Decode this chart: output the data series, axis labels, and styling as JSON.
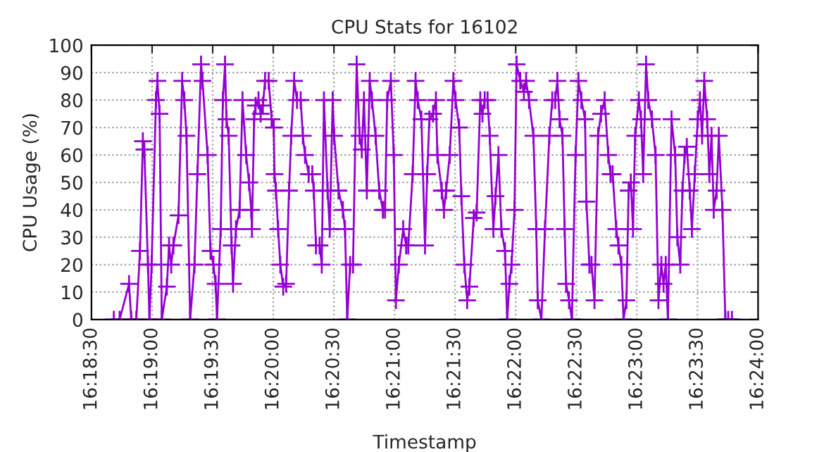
{
  "chart_data": {
    "type": "line",
    "title": "CPU Stats for 16102",
    "xlabel": "Timestamp",
    "ylabel": "CPU Usage (%)",
    "xlim": [
      16.30833,
      16.4
    ],
    "xticks": [
      {
        "value": 16.30833,
        "label": "16:18:30"
      },
      {
        "value": 16.31667,
        "label": "16:19:00"
      },
      {
        "value": 16.325,
        "label": "16:19:30"
      },
      {
        "value": 16.33333,
        "label": "16:20:00"
      },
      {
        "value": 16.34167,
        "label": "16:20:30"
      },
      {
        "value": 16.35,
        "label": "16:21:00"
      },
      {
        "value": 16.35833,
        "label": "16:21:30"
      },
      {
        "value": 16.36667,
        "label": "16:22:00"
      },
      {
        "value": 16.375,
        "label": "16:22:30"
      },
      {
        "value": 16.38333,
        "label": "16:23:00"
      },
      {
        "value": 16.39167,
        "label": "16:23:30"
      },
      {
        "value": 16.4,
        "label": "16:24:00"
      }
    ],
    "ylim": [
      0,
      100
    ],
    "yticks": [
      0,
      10,
      20,
      30,
      40,
      50,
      60,
      70,
      80,
      90,
      100
    ],
    "grid": true,
    "marker": "cross",
    "line_style": "solid",
    "series": [
      {
        "color": "#9400d3",
        "x": [
          16.3114,
          16.3122,
          16.3135,
          16.3138,
          16.3145,
          16.315,
          16.3154,
          16.3156,
          16.3161,
          16.3163,
          16.3166,
          16.3172,
          16.3174,
          16.3177,
          16.318,
          16.3187,
          16.319,
          16.3193,
          16.3196,
          16.3203,
          16.3208,
          16.3211,
          16.3214,
          16.3219,
          16.3225,
          16.3229,
          16.3234,
          16.3236,
          16.3243,
          16.3247,
          16.3251,
          16.3254,
          16.3256,
          16.3261,
          16.3264,
          16.3267,
          16.3269,
          16.3272,
          16.3276,
          16.3278,
          16.3282,
          16.3287,
          16.3291,
          16.3296,
          16.33,
          16.3303,
          16.3304,
          16.3307,
          16.3309,
          16.3313,
          16.3316,
          16.3319,
          16.3322,
          16.3327,
          16.3331,
          16.3334,
          16.3335,
          16.3337,
          16.334,
          16.3343,
          16.3347,
          16.3351,
          16.3355,
          16.3358,
          16.3362,
          16.3366,
          16.3371,
          16.3374,
          16.3377,
          16.3382,
          16.3387,
          16.3389,
          16.3392,
          16.3397,
          16.34,
          16.3403,
          16.3408,
          16.3411,
          16.3415,
          16.3417,
          16.3423,
          16.3429,
          16.3432,
          16.3435,
          16.3439,
          16.3443,
          16.3448,
          16.3452,
          16.3455,
          16.3458,
          16.3462,
          16.3466,
          16.3469,
          16.3474,
          16.3479,
          16.3484,
          16.3487,
          16.349,
          16.3495,
          16.3499,
          16.3502,
          16.3506,
          16.3512,
          16.3516,
          16.3519,
          16.3525,
          16.3529,
          16.3532,
          16.3537,
          16.3542,
          16.3545,
          16.3548,
          16.3553,
          16.3557,
          16.3559,
          16.3565,
          16.3568,
          16.3571,
          16.3576,
          16.3581,
          16.3584,
          16.3589,
          16.3592,
          16.3596,
          16.36,
          16.3603,
          16.3609,
          16.3613,
          16.3618,
          16.3621,
          16.3624,
          16.3628,
          16.3631,
          16.3636,
          16.3639,
          16.3643,
          16.3647,
          16.3652,
          16.3655,
          16.3658,
          16.3661,
          16.3665,
          16.3668,
          16.3673,
          16.3678,
          16.3681,
          16.3685,
          16.3691,
          16.3695,
          16.3697,
          16.3702,
          16.3707,
          16.3713,
          16.3717,
          16.3721,
          16.3724,
          16.3727,
          16.3731,
          16.3734,
          16.3736,
          16.374,
          16.3744,
          16.3749,
          16.3753,
          16.3757,
          16.3762,
          16.3764,
          16.3768,
          16.3771,
          16.3775,
          16.378,
          16.3784,
          16.3789,
          16.3794,
          16.3797,
          16.38,
          16.3805,
          16.3808,
          16.3812,
          16.3815,
          16.3819,
          16.3822,
          16.3825,
          16.3828,
          16.3831,
          16.3836,
          16.3839,
          16.3842,
          16.3846,
          16.3849,
          16.3854,
          16.3859,
          16.3863,
          16.3867,
          16.387,
          16.3873,
          16.3876,
          16.3881,
          16.3886,
          16.3889,
          16.3893,
          16.3896,
          16.3899,
          16.3902,
          16.3906,
          16.3909,
          16.3913,
          16.3917,
          16.392,
          16.3923,
          16.3926,
          16.393,
          16.3933,
          16.3936,
          16.3939,
          16.3943,
          16.3946,
          16.3951,
          16.3955,
          16.3959,
          16.3964
        ],
        "values": [
          0,
          0,
          13,
          0,
          0,
          25,
          65,
          62,
          20,
          0,
          20,
          80,
          87,
          75,
          0,
          12,
          27,
          20,
          27,
          38,
          87,
          80,
          67,
          0,
          20,
          53,
          93,
          87,
          60,
          25,
          20,
          13,
          0,
          33,
          80,
          93,
          73,
          67,
          27,
          13,
          33,
          40,
          80,
          60,
          50,
          40,
          33,
          73,
          78,
          80,
          75,
          78,
          87,
          87,
          73,
          70,
          53,
          47,
          33,
          20,
          12,
          13,
          47,
          67,
          87,
          80,
          80,
          67,
          60,
          53,
          53,
          47,
          27,
          27,
          20,
          80,
          47,
          33,
          80,
          67,
          47,
          40,
          33,
          0,
          20,
          20,
          93,
          67,
          62,
          80,
          47,
          87,
          80,
          67,
          47,
          40,
          40,
          80,
          87,
          60,
          7,
          20,
          33,
          27,
          27,
          53,
          87,
          80,
          73,
          27,
          53,
          73,
          75,
          80,
          60,
          47,
          40,
          47,
          60,
          87,
          80,
          70,
          45,
          20,
          7,
          12,
          37,
          39,
          80,
          75,
          80,
          80,
          67,
          33,
          45,
          60,
          33,
          25,
          0,
          13,
          20,
          40,
          93,
          87,
          83,
          87,
          80,
          67,
          33,
          7,
          0,
          33,
          67,
          80,
          80,
          87,
          73,
          67,
          33,
          13,
          7,
          0,
          60,
          87,
          80,
          73,
          43,
          20,
          20,
          7,
          67,
          75,
          80,
          60,
          53,
          53,
          33,
          27,
          20,
          0,
          7,
          47,
          50,
          33,
          67,
          80,
          73,
          53,
          93,
          80,
          73,
          60,
          7,
          20,
          13,
          20,
          0,
          73,
          60,
          30,
          20,
          47,
          60,
          63,
          47,
          33,
          53,
          73,
          80,
          67,
          87,
          73,
          53,
          67,
          40,
          47,
          67,
          40,
          0,
          0,
          0
        ]
      }
    ]
  }
}
